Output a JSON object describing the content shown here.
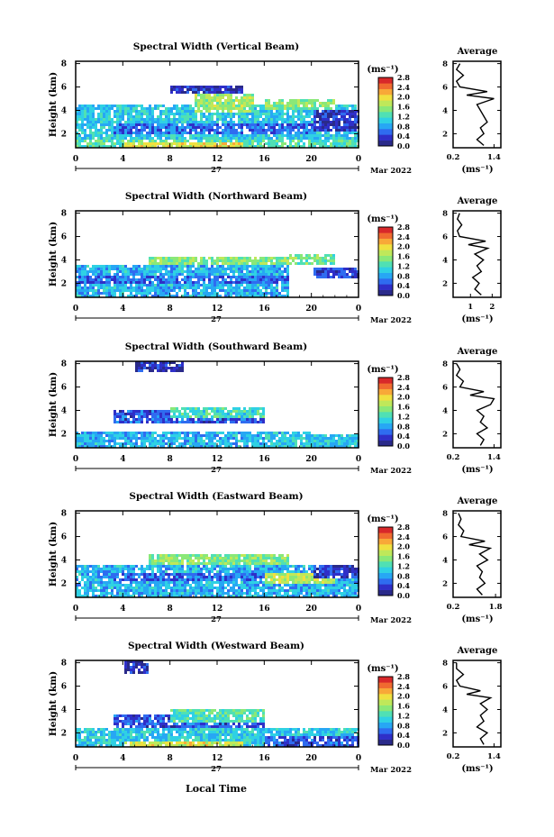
{
  "figure": {
    "month_label": "Mar 2022",
    "day_label": "27",
    "xlabel": "Local Time",
    "ylabel": "Height (km)",
    "colorbar_unit": "(ms⁻¹)",
    "avg_title": "Average",
    "avg_unit": "(ms⁻¹)"
  },
  "colormap": [
    "#2a2a8a",
    "#2f2fc8",
    "#2f6cf0",
    "#27a7f4",
    "#2fd1e4",
    "#50e0b4",
    "#8ae878",
    "#bfe85a",
    "#f0e040",
    "#f8a838",
    "#f06a30",
    "#d8282a"
  ],
  "chart_data": [
    {
      "type": "heatmap",
      "title": "Spectral Width (Vertical Beam)",
      "x_ticks": [
        "0",
        "4",
        "8",
        "12",
        "16",
        "20",
        "0"
      ],
      "xlim": [
        0,
        24
      ],
      "y_ticks": [
        "2",
        "4",
        "6",
        "8"
      ],
      "ylim": [
        0.8,
        8.2
      ],
      "colorbar_ticks": [
        "0.0",
        "0.4",
        "0.8",
        "1.2",
        "1.6",
        "2.0",
        "2.4",
        "2.8"
      ],
      "colorbar_range": [
        0,
        2.8
      ],
      "regions": [
        {
          "x0": 0,
          "x1": 24,
          "y0": 0.8,
          "y1": 4.6,
          "v": 1.0
        },
        {
          "x0": 3,
          "x1": 20,
          "y0": 2.0,
          "y1": 3.0,
          "v": 0.6
        },
        {
          "x0": 0,
          "x1": 24,
          "y0": 0.8,
          "y1": 1.6,
          "v": 1.3
        },
        {
          "x0": 4,
          "x1": 14,
          "y0": 0.8,
          "y1": 1.4,
          "v": 1.9
        },
        {
          "x0": 10,
          "x1": 15,
          "y0": 4.0,
          "y1": 5.6,
          "v": 1.6
        },
        {
          "x0": 16,
          "x1": 22,
          "y0": 4.2,
          "y1": 5.0,
          "v": 1.5
        },
        {
          "x0": 8,
          "x1": 14,
          "y0": 5.6,
          "y1": 6.2,
          "v": 0.3
        },
        {
          "x0": 20,
          "x1": 24,
          "y0": 2.4,
          "y1": 4.2,
          "v": 0.3
        }
      ],
      "profile": {
        "xlabel_ticks": [
          "0.2",
          "1.4"
        ],
        "xlim": [
          0.2,
          1.6
        ],
        "height": [
          1.0,
          1.5,
          2.0,
          2.5,
          3.0,
          3.5,
          4.0,
          4.5,
          5.0,
          5.3,
          5.6,
          6.0,
          6.5,
          7.0,
          7.5,
          8.0
        ],
        "value": [
          1.1,
          0.9,
          1.1,
          1.0,
          1.2,
          1.1,
          1.0,
          0.9,
          1.4,
          0.6,
          1.2,
          0.4,
          0.3,
          0.5,
          0.3,
          0.4
        ]
      }
    },
    {
      "type": "heatmap",
      "title": "Spectral Width (Northward Beam)",
      "x_ticks": [
        "0",
        "4",
        "8",
        "12",
        "16",
        "20",
        "0"
      ],
      "xlim": [
        0,
        24
      ],
      "y_ticks": [
        "2",
        "4",
        "6",
        "8"
      ],
      "ylim": [
        0.8,
        8.2
      ],
      "colorbar_ticks": [
        "0.0",
        "0.4",
        "0.8",
        "1.2",
        "1.6",
        "2.0",
        "2.4",
        "2.8"
      ],
      "colorbar_range": [
        0,
        2.8
      ],
      "regions": [
        {
          "x0": 0,
          "x1": 18,
          "y0": 0.8,
          "y1": 3.6,
          "v": 0.9
        },
        {
          "x0": 0,
          "x1": 18,
          "y0": 2.0,
          "y1": 2.8,
          "v": 0.6
        },
        {
          "x0": 6,
          "x1": 18,
          "y0": 3.6,
          "y1": 4.4,
          "v": 1.5
        },
        {
          "x0": 18,
          "x1": 22,
          "y0": 3.8,
          "y1": 4.6,
          "v": 1.4
        },
        {
          "x0": 20,
          "x1": 24,
          "y0": 2.6,
          "y1": 3.4,
          "v": 0.4
        }
      ],
      "profile": {
        "xlabel_ticks": [
          "1",
          "2"
        ],
        "xlim": [
          0.2,
          2.4
        ],
        "height": [
          1.0,
          1.5,
          2.0,
          2.5,
          3.0,
          3.5,
          4.0,
          4.5,
          5.0,
          5.3,
          5.6,
          6.0,
          6.5,
          7.0,
          7.5,
          8.0
        ],
        "value": [
          1.5,
          1.2,
          1.4,
          1.1,
          1.5,
          1.3,
          1.6,
          1.2,
          1.8,
          0.9,
          1.7,
          0.5,
          0.4,
          0.6,
          0.4,
          0.5
        ]
      }
    },
    {
      "type": "heatmap",
      "title": "Spectral Width (Southward Beam)",
      "x_ticks": [
        "0",
        "4",
        "8",
        "12",
        "16",
        "20",
        "0"
      ],
      "xlim": [
        0,
        24
      ],
      "y_ticks": [
        "2",
        "4",
        "6",
        "8"
      ],
      "ylim": [
        0.8,
        8.2
      ],
      "colorbar_ticks": [
        "0.0",
        "0.4",
        "0.8",
        "1.2",
        "1.6",
        "2.0",
        "2.4",
        "2.8"
      ],
      "colorbar_range": [
        0,
        2.8
      ],
      "regions": [
        {
          "x0": 0,
          "x1": 20,
          "y0": 0.8,
          "y1": 2.4,
          "v": 0.9
        },
        {
          "x0": 3,
          "x1": 16,
          "y0": 3.0,
          "y1": 4.2,
          "v": 0.5
        },
        {
          "x0": 8,
          "x1": 16,
          "y0": 3.4,
          "y1": 4.4,
          "v": 1.2
        },
        {
          "x0": 16,
          "x1": 24,
          "y0": 0.8,
          "y1": 2.0,
          "v": 1.0
        },
        {
          "x0": 5,
          "x1": 9,
          "y0": 7.4,
          "y1": 8.2,
          "v": 0.3
        }
      ],
      "profile": {
        "xlabel_ticks": [
          "0.2",
          "1.4"
        ],
        "xlim": [
          0.2,
          1.6
        ],
        "height": [
          1.0,
          1.5,
          2.0,
          2.5,
          3.0,
          3.5,
          4.0,
          4.5,
          5.0,
          5.3,
          5.6,
          6.0,
          6.5,
          7.0,
          7.5,
          8.0
        ],
        "value": [
          1.0,
          1.1,
          0.9,
          1.2,
          1.0,
          1.1,
          0.9,
          1.3,
          1.4,
          0.7,
          1.1,
          0.4,
          0.5,
          0.3,
          0.4,
          0.3
        ]
      }
    },
    {
      "type": "heatmap",
      "title": "Spectral Width (Eastward Beam)",
      "x_ticks": [
        "0",
        "4",
        "8",
        "12",
        "16",
        "20",
        "0"
      ],
      "xlim": [
        0,
        24
      ],
      "y_ticks": [
        "2",
        "4",
        "6",
        "8"
      ],
      "ylim": [
        0.8,
        8.2
      ],
      "colorbar_ticks": [
        "0.0",
        "0.4",
        "0.8",
        "1.2",
        "1.6",
        "2.0",
        "2.4",
        "2.8"
      ],
      "colorbar_range": [
        0,
        2.8
      ],
      "regions": [
        {
          "x0": 0,
          "x1": 24,
          "y0": 0.8,
          "y1": 3.6,
          "v": 0.9
        },
        {
          "x0": 3,
          "x1": 20,
          "y0": 2.2,
          "y1": 3.0,
          "v": 0.6
        },
        {
          "x0": 6,
          "x1": 18,
          "y0": 3.6,
          "y1": 4.6,
          "v": 1.5
        },
        {
          "x0": 16,
          "x1": 22,
          "y0": 2.0,
          "y1": 3.0,
          "v": 1.7
        },
        {
          "x0": 20,
          "x1": 24,
          "y0": 2.6,
          "y1": 3.6,
          "v": 0.4
        }
      ],
      "profile": {
        "xlabel_ticks": [
          "0.2",
          "1.8"
        ],
        "xlim": [
          0.2,
          2.0
        ],
        "height": [
          1.0,
          1.5,
          2.0,
          2.5,
          3.0,
          3.5,
          4.0,
          4.5,
          5.0,
          5.3,
          5.6,
          6.0,
          6.5,
          7.0,
          7.5,
          8.0
        ],
        "value": [
          1.3,
          1.1,
          1.4,
          1.2,
          1.3,
          1.1,
          1.5,
          1.2,
          1.6,
          0.8,
          1.4,
          0.5,
          0.6,
          0.4,
          0.5,
          0.4
        ]
      }
    },
    {
      "type": "heatmap",
      "title": "Spectral Width (Westward Beam)",
      "x_ticks": [
        "0",
        "4",
        "8",
        "12",
        "16",
        "20",
        "0"
      ],
      "xlim": [
        0,
        24
      ],
      "y_ticks": [
        "2",
        "4",
        "6",
        "8"
      ],
      "ylim": [
        0.8,
        8.2
      ],
      "colorbar_ticks": [
        "0.0",
        "0.4",
        "0.8",
        "1.2",
        "1.6",
        "2.0",
        "2.4",
        "2.8"
      ],
      "colorbar_range": [
        0,
        2.8
      ],
      "regions": [
        {
          "x0": 0,
          "x1": 24,
          "y0": 0.8,
          "y1": 2.6,
          "v": 1.0
        },
        {
          "x0": 3,
          "x1": 16,
          "y0": 2.6,
          "y1": 3.6,
          "v": 0.5
        },
        {
          "x0": 8,
          "x1": 16,
          "y0": 3.0,
          "y1": 4.2,
          "v": 1.3
        },
        {
          "x0": 4,
          "x1": 14,
          "y0": 0.8,
          "y1": 1.4,
          "v": 1.9
        },
        {
          "x0": 16,
          "x1": 24,
          "y0": 0.8,
          "y1": 1.8,
          "v": 0.5
        },
        {
          "x0": 4,
          "x1": 6,
          "y0": 7.2,
          "y1": 8.2,
          "v": 0.3
        }
      ],
      "profile": {
        "xlabel_ticks": [
          "0.2",
          "1.4"
        ],
        "xlim": [
          0.2,
          1.6
        ],
        "height": [
          1.0,
          1.5,
          2.0,
          2.5,
          3.0,
          3.5,
          4.0,
          4.5,
          5.0,
          5.3,
          5.6,
          6.0,
          6.5,
          7.0,
          7.5,
          8.0
        ],
        "value": [
          1.1,
          1.0,
          1.2,
          0.9,
          1.1,
          1.0,
          1.2,
          1.0,
          1.3,
          0.6,
          1.0,
          0.4,
          0.3,
          0.5,
          0.3,
          0.3
        ]
      }
    }
  ]
}
